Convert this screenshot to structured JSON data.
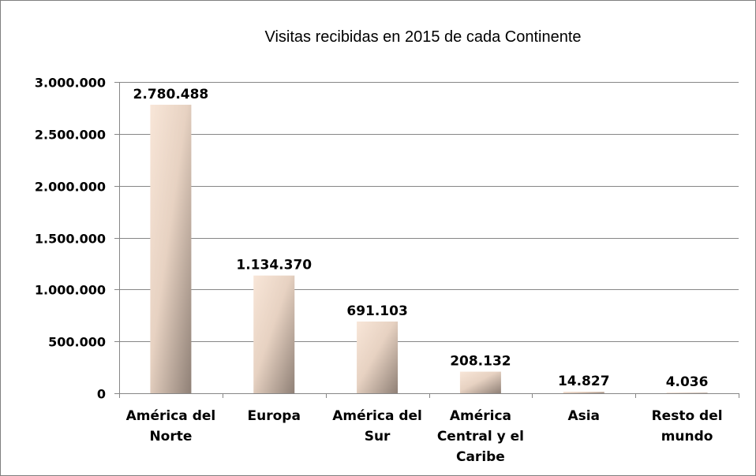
{
  "chart_data": {
    "type": "bar",
    "title": "Visitas recibidas en 2015 de cada Continente",
    "categories": [
      [
        "América del",
        "Norte"
      ],
      [
        "Europa"
      ],
      [
        "América del",
        "Sur"
      ],
      [
        "América",
        "Central y el",
        "Caribe"
      ],
      [
        "Asia"
      ],
      [
        "Resto del",
        "mundo"
      ]
    ],
    "values": [
      2780488,
      1134370,
      691103,
      208132,
      14827,
      4036
    ],
    "data_labels": [
      "2.780.488",
      "1.134.370",
      "691.103",
      "208.132",
      "14.827",
      "4.036"
    ],
    "yticks": [
      0,
      500000,
      1000000,
      1500000,
      2000000,
      2500000,
      3000000
    ],
    "ytick_labels": [
      "0",
      "500.000",
      "1.000.000",
      "1.500.000",
      "2.000.000",
      "2.500.000",
      "3.000.000"
    ],
    "ylim": [
      0,
      3000000
    ],
    "grid": true,
    "legend": "none",
    "colors": {
      "bar_light": "#f6e3d4",
      "bar_dark": "#8f8076",
      "grid": "#868686",
      "axis": "#868686"
    }
  }
}
